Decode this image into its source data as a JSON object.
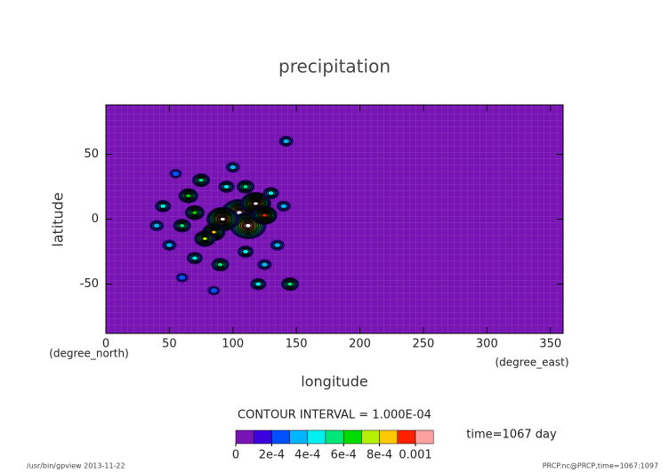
{
  "chart_data": {
    "type": "contour-map",
    "title": "precipitation",
    "x_label": "longitude",
    "y_label": "latitude",
    "x_unit": "(degree_east)",
    "y_unit": "(degree_north)",
    "xlim": [
      0,
      360
    ],
    "ylim": [
      -88,
      88
    ],
    "xticks": [
      0,
      50,
      100,
      150,
      200,
      250,
      300,
      350
    ],
    "yticks": [
      -50,
      0,
      50
    ],
    "background_color": "#7814b4",
    "over_color": "#ffffff",
    "points": {
      "x": [
        105,
        112,
        92,
        118,
        125,
        85,
        78,
        70,
        60,
        65,
        75,
        95,
        110,
        130,
        140,
        45,
        40,
        50,
        70,
        90,
        110,
        125,
        145,
        120,
        85,
        142,
        100,
        55,
        135,
        60
      ],
      "y": [
        5,
        -5,
        0,
        12,
        3,
        -10,
        -15,
        5,
        -5,
        18,
        30,
        25,
        25,
        20,
        10,
        10,
        -5,
        -20,
        -30,
        -35,
        -25,
        -35,
        -50,
        -50,
        -55,
        60,
        40,
        35,
        -20,
        -45
      ],
      "values": [
        0.0015,
        0.0015,
        0.0013,
        0.0012,
        0.0009,
        0.0008,
        0.0007,
        0.0006,
        0.0005,
        0.0006,
        0.0005,
        0.0004,
        0.0005,
        0.0004,
        0.0003,
        0.0004,
        0.0003,
        0.0003,
        0.0004,
        0.0005,
        0.0004,
        0.0003,
        0.0005,
        0.0004,
        0.0002,
        0.0003,
        0.0003,
        0.0002,
        0.0003,
        0.0002
      ]
    },
    "contour_interval": "CONTOUR INTERVAL = 1.000E-04",
    "time_label": "time=1067 day",
    "colorbar": {
      "levels": [
        0,
        0.0001,
        0.0002,
        0.0003,
        0.0004,
        0.0005,
        0.0006,
        0.0007,
        0.0008,
        0.0009,
        0.001
      ],
      "colors": [
        "#7814b4",
        "#3c00dc",
        "#0050ff",
        "#00b4ff",
        "#00f0f0",
        "#00e678",
        "#00dc00",
        "#b4f000",
        "#ffc800",
        "#ff2000",
        "#ffa0a0"
      ],
      "ticks": [
        0,
        {
          "value": 0.0002,
          "label": "2e-4"
        },
        {
          "value": 0.0004,
          "label": "4e-4"
        },
        {
          "value": 0.0006,
          "label": "6e-4"
        },
        {
          "value": 0.0008,
          "label": "8e-4"
        },
        0.001
      ]
    },
    "footer_left": "/usr/bin/gpview  2013-11-22",
    "footer_right": "PRCP.nc@PRCP,time=1067:1097"
  }
}
